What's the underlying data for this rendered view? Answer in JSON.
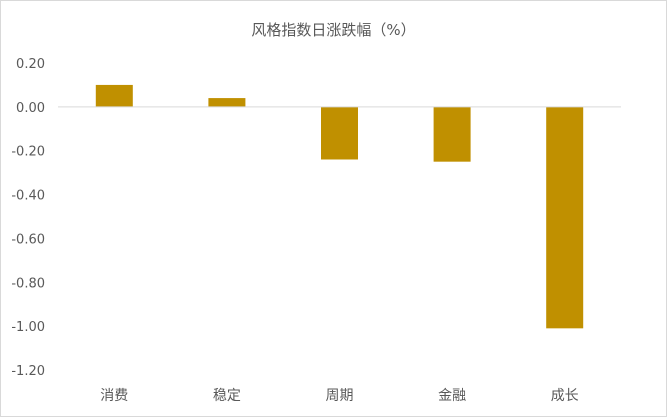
{
  "chart_data": {
    "type": "bar",
    "title": "风格指数日涨跌幅（%）",
    "categories": [
      "消费",
      "稳定",
      "周期",
      "金融",
      "成长"
    ],
    "values": [
      0.1,
      0.04,
      -0.24,
      -0.25,
      -1.01
    ],
    "ylim": [
      -1.2,
      0.2
    ],
    "yticks": [
      "0.20",
      "0.00",
      "-0.20",
      "-0.40",
      "-0.60",
      "-0.80",
      "-1.00",
      "-1.20"
    ],
    "grid": false,
    "legend": "none",
    "bar_color": "#C09000",
    "axis_color": "#d9d9d9",
    "text_color": "#595959"
  }
}
